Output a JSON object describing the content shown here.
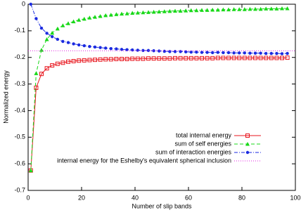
{
  "chart_data": {
    "type": "line",
    "xlabel": "Number of slip bands",
    "ylabel": "Normalized energy",
    "xlim": [
      0,
      100
    ],
    "ylim": [
      -0.7,
      0
    ],
    "xticks": [
      0,
      20,
      40,
      60,
      80,
      100
    ],
    "yticks": [
      -0.7,
      -0.6,
      -0.5,
      -0.4,
      -0.3,
      -0.2,
      -0.1,
      0
    ],
    "legend": "lower right",
    "x": [
      1,
      3,
      5,
      7,
      9,
      11,
      13,
      15,
      17,
      19,
      21,
      23,
      25,
      27,
      29,
      31,
      33,
      35,
      37,
      39,
      41,
      43,
      45,
      47,
      49,
      51,
      53,
      55,
      57,
      59,
      61,
      63,
      65,
      67,
      69,
      71,
      73,
      75,
      77,
      79,
      81,
      83,
      85,
      87,
      89,
      91,
      93,
      95,
      97
    ],
    "series": [
      {
        "name": "total internal energy",
        "color": "#e8141c",
        "marker": "square",
        "dash": "solid",
        "values": [
          -0.625,
          -0.314,
          -0.262,
          -0.241,
          -0.23,
          -0.224,
          -0.22,
          -0.216,
          -0.214,
          -0.212,
          -0.211,
          -0.21,
          -0.209,
          -0.208,
          -0.207,
          -0.207,
          -0.206,
          -0.206,
          -0.206,
          -0.205,
          -0.205,
          -0.205,
          -0.204,
          -0.204,
          -0.204,
          -0.204,
          -0.204,
          -0.203,
          -0.203,
          -0.203,
          -0.203,
          -0.203,
          -0.203,
          -0.203,
          -0.203,
          -0.202,
          -0.202,
          -0.202,
          -0.202,
          -0.202,
          -0.202,
          -0.202,
          -0.202,
          -0.202,
          -0.202,
          -0.202,
          -0.202,
          -0.202,
          -0.201
        ]
      },
      {
        "name": "sum of self energies",
        "color": "#18d818",
        "marker": "triangle",
        "dash": "dashed",
        "values": [
          -0.625,
          -0.26,
          -0.172,
          -0.132,
          -0.108,
          -0.092,
          -0.08,
          -0.072,
          -0.065,
          -0.059,
          -0.055,
          -0.051,
          -0.048,
          -0.045,
          -0.042,
          -0.04,
          -0.038,
          -0.036,
          -0.035,
          -0.033,
          -0.032,
          -0.031,
          -0.03,
          -0.029,
          -0.028,
          -0.027,
          -0.026,
          -0.025,
          -0.025,
          -0.024,
          -0.023,
          -0.023,
          -0.022,
          -0.022,
          -0.021,
          -0.021,
          -0.02,
          -0.02,
          -0.019,
          -0.019,
          -0.019,
          -0.018,
          -0.018,
          -0.018,
          -0.017,
          -0.017,
          -0.017,
          -0.016,
          -0.016
        ]
      },
      {
        "name": "sum of interaction energies",
        "color": "#1a2ae0",
        "marker": "circle",
        "dash": "dashdot",
        "values": [
          0,
          -0.054,
          -0.09,
          -0.109,
          -0.122,
          -0.132,
          -0.14,
          -0.144,
          -0.149,
          -0.153,
          -0.156,
          -0.159,
          -0.161,
          -0.163,
          -0.165,
          -0.167,
          -0.168,
          -0.17,
          -0.171,
          -0.172,
          -0.173,
          -0.174,
          -0.174,
          -0.175,
          -0.176,
          -0.177,
          -0.178,
          -0.178,
          -0.178,
          -0.179,
          -0.18,
          -0.18,
          -0.181,
          -0.181,
          -0.182,
          -0.181,
          -0.182,
          -0.182,
          -0.183,
          -0.183,
          -0.183,
          -0.184,
          -0.184,
          -0.184,
          -0.185,
          -0.185,
          -0.185,
          -0.186,
          -0.185
        ]
      },
      {
        "name": "internal energy for the Eshelby's equivalent spherical inclusion",
        "color": "#e020e0",
        "marker": "none",
        "dash": "dotted",
        "x": [
          0,
          100
        ],
        "values": [
          -0.175,
          -0.175
        ]
      }
    ]
  }
}
